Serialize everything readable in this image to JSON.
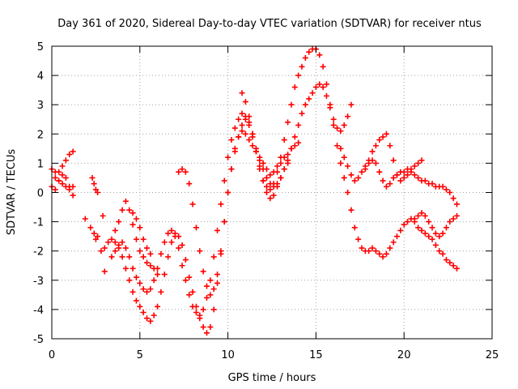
{
  "chart_data": {
    "type": "scatter",
    "title": "Day 361 of 2020, Sidereal Day-to-day VTEC variation (SDTVAR) for receiver ntus",
    "xlabel": "GPS time / hours",
    "ylabel": "SDTVAR / TECUs",
    "xlim": [
      0,
      25
    ],
    "ylim": [
      -5,
      5
    ],
    "x_ticks": [
      0,
      5,
      10,
      15,
      20,
      25
    ],
    "x_tick_labels": [
      "0",
      "5",
      "10",
      "15",
      "20",
      "25"
    ],
    "y_ticks": [
      -5,
      -4,
      -3,
      -2,
      -1,
      0,
      1,
      2,
      3,
      4,
      5
    ],
    "y_tick_labels": [
      "-5",
      "-4",
      "-3",
      "-2",
      "-1",
      "0",
      "1",
      "2",
      "3",
      "4",
      "5"
    ],
    "grid": true,
    "marker": "+",
    "color": "#ff0000",
    "series": [
      {
        "name": "s1",
        "x": [
          0.0,
          0.2,
          0.4,
          0.6,
          0.8,
          1.0,
          1.2
        ],
        "y": [
          0.2,
          0.5,
          0.7,
          0.9,
          1.1,
          1.3,
          1.4
        ]
      },
      {
        "name": "s2",
        "x": [
          0.0,
          0.2,
          0.4,
          0.6,
          0.8,
          1.0,
          1.2
        ],
        "y": [
          0.8,
          0.7,
          0.4,
          0.3,
          0.2,
          0.1,
          0.2
        ]
      },
      {
        "name": "s3",
        "x": [
          0.2,
          0.4,
          0.6,
          0.8,
          1.0,
          1.2
        ],
        "y": [
          0.1,
          0.4,
          0.6,
          0.5,
          0.2,
          -0.1
        ]
      },
      {
        "name": "s4",
        "x": [
          2.2,
          2.4,
          2.5,
          2.6
        ],
        "y": [
          -1.2,
          -1.4,
          -1.6,
          -1.5
        ]
      },
      {
        "name": "s5",
        "x": [
          2.3,
          2.4,
          2.5,
          2.6
        ],
        "y": [
          0.5,
          0.3,
          0.1,
          0.0
        ]
      },
      {
        "name": "s6",
        "x": [
          2.8,
          3.0,
          3.2,
          3.4,
          3.6,
          3.8,
          4.0,
          4.2,
          4.4,
          4.6,
          4.8,
          5.0,
          5.2,
          5.4,
          5.6,
          5.8,
          6.0,
          6.2,
          6.4,
          6.6,
          6.8,
          7.0,
          7.2,
          7.4,
          7.6,
          7.8,
          8.0,
          8.2,
          8.4,
          8.6,
          8.8,
          9.0,
          9.2,
          9.4,
          9.6,
          9.8,
          10.0,
          10.2,
          10.4,
          10.6,
          10.8,
          11.0,
          11.2,
          11.4,
          11.6,
          11.8,
          12.0,
          12.2,
          12.4,
          12.6,
          12.8,
          13.0,
          13.2,
          13.4,
          13.6,
          13.8,
          14.0
        ],
        "y": [
          -2.0,
          -1.9,
          -1.7,
          -1.6,
          -1.7,
          -1.9,
          -2.2,
          -2.6,
          -3.0,
          -3.4,
          -3.7,
          -3.9,
          -4.1,
          -4.3,
          -4.4,
          -4.2,
          -3.9,
          -3.4,
          -2.8,
          -2.2,
          -1.7,
          -1.4,
          -1.5,
          -1.8,
          -2.3,
          -2.9,
          -3.4,
          -3.9,
          -4.3,
          -4.6,
          -4.8,
          -4.6,
          -4.0,
          -3.1,
          -2.1,
          -1.0,
          0.0,
          0.8,
          1.5,
          1.9,
          2.1,
          2.0,
          1.8,
          1.6,
          1.4,
          1.2,
          1.0,
          0.8,
          0.6,
          0.7,
          0.9,
          1.0,
          1.2,
          1.3,
          1.5,
          1.6,
          1.7
        ]
      },
      {
        "name": "s7",
        "x": [
          3.4,
          3.6,
          3.8,
          4.0,
          4.2,
          4.4,
          4.6,
          4.8,
          5.0,
          5.2,
          5.4,
          5.6,
          5.8,
          6.0,
          6.2,
          6.4,
          6.6,
          6.8,
          7.0,
          7.2,
          7.4,
          7.6,
          7.8,
          8.0,
          8.2,
          8.4,
          8.6,
          8.8,
          9.0,
          9.2,
          9.4,
          9.6,
          9.8,
          10.0,
          10.2,
          10.4,
          10.6,
          10.8,
          11.0,
          11.2,
          11.4,
          11.6,
          11.8,
          12.0,
          12.2,
          12.4,
          12.6,
          12.8,
          13.0,
          13.2,
          13.4
        ],
        "y": [
          -2.2,
          -2.0,
          -1.8,
          -1.7,
          -1.9,
          -2.2,
          -2.6,
          -2.9,
          -3.1,
          -3.3,
          -3.4,
          -3.3,
          -3.0,
          -2.6,
          -2.1,
          -1.7,
          -1.4,
          -1.3,
          -1.5,
          -1.9,
          -2.5,
          -3.0,
          -3.5,
          -3.9,
          -4.1,
          -4.2,
          -4.0,
          -3.6,
          -3.0,
          -2.2,
          -1.3,
          -0.4,
          0.4,
          1.2,
          1.8,
          2.2,
          2.5,
          2.7,
          2.6,
          2.3,
          1.9,
          1.4,
          0.9,
          0.4,
          0.0,
          -0.2,
          -0.1,
          0.2,
          0.5,
          0.8,
          1.0
        ]
      },
      {
        "name": "s8",
        "x": [
          7.2,
          7.4,
          7.6,
          7.8,
          8.0,
          8.2,
          8.4,
          8.6,
          8.8,
          9.0,
          9.2,
          9.4,
          9.6,
          9.8,
          10.0,
          10.2,
          10.4,
          10.6,
          10.8,
          11.0,
          11.2,
          11.4,
          11.6,
          11.8,
          12.0,
          12.2,
          12.4,
          12.6,
          12.8,
          13.0,
          13.2,
          13.4,
          13.6,
          13.8,
          14.0,
          14.2,
          14.4,
          14.6,
          14.8,
          15.0,
          15.2,
          15.4,
          15.6,
          15.8,
          16.0,
          16.2,
          16.4,
          16.6,
          16.8,
          17.0,
          17.2,
          17.4,
          17.6,
          17.8,
          18.0,
          18.2,
          18.4,
          18.6,
          18.8,
          19.0,
          19.2,
          19.4,
          19.6,
          19.8,
          20.0,
          20.2,
          20.4,
          20.6,
          20.8,
          21.0,
          21.2,
          21.4,
          21.6,
          21.8,
          22.0,
          22.2,
          22.4,
          22.6,
          22.8,
          23.0
        ],
        "y": [
          0.7,
          0.8,
          0.7,
          0.3,
          -0.4,
          -1.2,
          -2.0,
          -2.7,
          -3.2,
          -3.5,
          -3.3,
          -2.8,
          -2.0,
          -1.0,
          0.0,
          0.8,
          1.4,
          1.9,
          2.3,
          2.5,
          2.4,
          2.0,
          1.4,
          0.8,
          0.4,
          0.2,
          0.1,
          0.3,
          0.7,
          1.2,
          1.8,
          2.4,
          3.0,
          3.6,
          4.0,
          4.3,
          4.6,
          4.8,
          4.9,
          4.9,
          4.7,
          4.3,
          3.7,
          3.0,
          2.3,
          1.6,
          1.0,
          0.5,
          0.0,
          -0.6,
          -1.2,
          -1.6,
          -1.9,
          -2.0,
          -2.0,
          -1.9,
          -2.0,
          -2.1,
          -2.2,
          -2.1,
          -1.9,
          -1.7,
          -1.5,
          -1.3,
          -1.1,
          -1.0,
          -0.9,
          -1.0,
          -1.2,
          -1.3,
          -1.4,
          -1.5,
          -1.6,
          -1.8,
          -2.0,
          -2.1,
          -2.3,
          -2.4,
          -2.5,
          -2.6
        ]
      },
      {
        "name": "s9",
        "x": [
          10.8,
          11.0,
          11.2,
          11.4,
          11.6,
          11.8,
          12.0,
          12.2,
          12.4,
          12.6,
          12.8,
          13.0,
          13.2,
          13.4,
          13.6,
          13.8,
          14.0,
          14.2,
          14.4,
          14.6,
          14.8,
          15.0,
          15.2,
          15.4,
          15.6,
          15.8,
          16.0,
          16.2,
          16.4,
          16.6,
          16.8,
          17.0
        ],
        "y": [
          3.4,
          3.1,
          2.6,
          2.0,
          1.5,
          1.1,
          0.8,
          0.5,
          0.3,
          0.2,
          0.3,
          0.5,
          0.8,
          1.1,
          1.5,
          1.9,
          2.3,
          2.7,
          3.0,
          3.2,
          3.4,
          3.6,
          3.7,
          3.6,
          3.3,
          2.9,
          2.5,
          2.2,
          2.1,
          2.3,
          2.6,
          3.0
        ]
      },
      {
        "name": "s10",
        "x": [
          16.4,
          16.6,
          16.8,
          17.0,
          17.2,
          17.4,
          17.6,
          17.8,
          18.0,
          18.2,
          18.4,
          18.6,
          18.8,
          19.0,
          19.2,
          19.4,
          19.6,
          19.8,
          20.0,
          20.2,
          20.4,
          20.6,
          20.8,
          21.0,
          21.2,
          21.4,
          21.6,
          21.8,
          22.0,
          22.2,
          22.4,
          22.6,
          22.8,
          23.0
        ],
        "y": [
          1.5,
          1.2,
          0.9,
          0.6,
          0.4,
          0.5,
          0.7,
          0.9,
          1.0,
          1.1,
          1.0,
          0.7,
          0.4,
          0.2,
          0.3,
          0.5,
          0.6,
          0.7,
          0.7,
          0.8,
          0.7,
          0.6,
          0.5,
          0.4,
          0.4,
          0.3,
          0.3,
          0.2,
          0.2,
          0.2,
          0.1,
          0.0,
          -0.2,
          -0.4
        ]
      },
      {
        "name": "s11",
        "x": [
          17.8,
          18.0,
          18.2,
          18.4,
          18.6,
          18.8,
          19.0,
          19.2,
          19.4,
          19.6,
          19.8,
          20.0,
          20.2,
          20.4,
          20.6,
          20.8,
          21.0
        ],
        "y": [
          0.8,
          1.1,
          1.4,
          1.6,
          1.8,
          1.9,
          2.0,
          1.6,
          1.1,
          0.6,
          0.4,
          0.5,
          0.6,
          0.8,
          0.9,
          1.0,
          1.1
        ]
      },
      {
        "name": "s12",
        "x": [
          20.6,
          20.8,
          21.0,
          21.2,
          21.4,
          21.6,
          21.8,
          22.0,
          22.2,
          22.4,
          22.6,
          22.8,
          23.0
        ],
        "y": [
          -0.9,
          -0.8,
          -0.7,
          -0.8,
          -1.0,
          -1.2,
          -1.4,
          -1.5,
          -1.4,
          -1.2,
          -1.0,
          -0.9,
          -0.8
        ]
      },
      {
        "name": "s13",
        "x": [
          1.9,
          2.9,
          3.0
        ],
        "y": [
          -0.9,
          -0.8,
          -2.7
        ]
      },
      {
        "name": "s14",
        "x": [
          3.6,
          3.8,
          4.0,
          4.2,
          4.4,
          4.6,
          4.8,
          5.0,
          5.2,
          5.4,
          5.6,
          5.8,
          6.0
        ],
        "y": [
          -1.3,
          -1.0,
          -0.6,
          -0.3,
          -0.6,
          -1.1,
          -1.6,
          -2.0,
          -2.2,
          -2.4,
          -2.5,
          -2.6,
          -2.8
        ]
      },
      {
        "name": "s15",
        "x": [
          4.6,
          4.8,
          5.0,
          5.2,
          5.4,
          5.6
        ],
        "y": [
          -0.7,
          -0.9,
          -1.2,
          -1.6,
          -1.9,
          -2.1
        ]
      }
    ]
  }
}
